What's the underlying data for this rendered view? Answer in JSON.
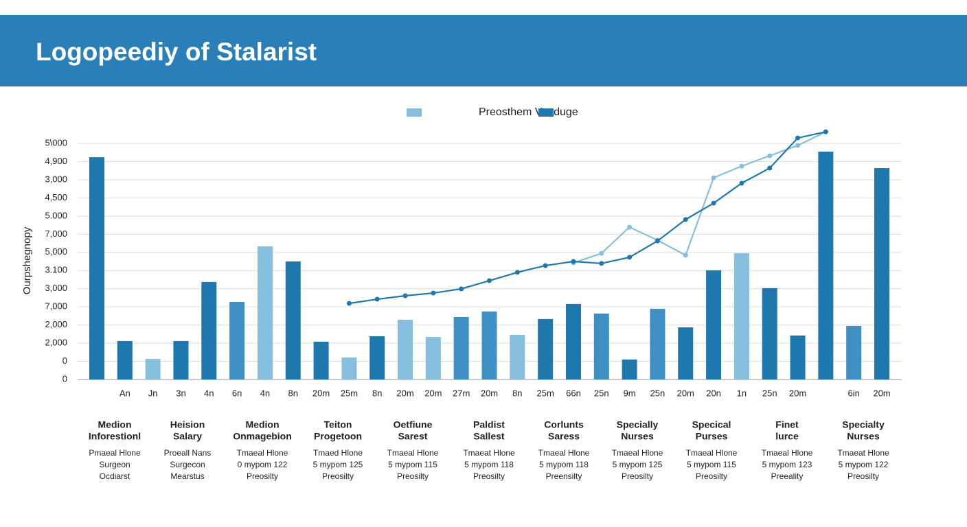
{
  "chart_data": {
    "type": "bar",
    "title": "Logopeediy of Stalarist",
    "legend": "Preosthem Vanduge",
    "legend_colors": [
      "#86bede",
      "#1f78ad"
    ],
    "ylabel": "Ourpshegnopy",
    "ylim": [
      0,
      14
    ],
    "yticks": [
      0,
      {
        "value": 1,
        "label": "0"
      },
      {
        "value": 2,
        "label": "2,000"
      },
      {
        "value": 3,
        "label": "2,000"
      },
      {
        "value": 4,
        "label": "7,000"
      },
      {
        "value": 5,
        "label": "3,000"
      },
      {
        "value": 6,
        "label": "3.100"
      },
      {
        "value": 7,
        "label": "5,000"
      },
      {
        "value": 8,
        "label": "7,000"
      },
      {
        "value": 9,
        "label": "5.000"
      },
      {
        "value": 10,
        "label": "4,500"
      },
      {
        "value": 11,
        "label": "3,000"
      },
      {
        "value": 12,
        "label": "4,900"
      },
      {
        "value": 13,
        "label": "5\\000"
      }
    ],
    "grid": true,
    "categories": [
      null,
      "An",
      "Jn",
      "3n",
      "4n",
      "6n",
      "4n",
      "8n",
      "20m",
      "25m",
      "8n",
      "20m",
      "20m",
      "27m",
      "20m",
      "8n",
      "25m",
      "66n",
      "25n",
      "9m",
      "25n",
      "20m",
      "20n",
      "1n",
      "25n",
      "20m",
      null,
      "6in",
      "20m"
    ],
    "values": [
      12.24,
      2.12,
      1.13,
      2.12,
      5.37,
      4.27,
      7.33,
      6.5,
      2.08,
      1.21,
      2.38,
      3.29,
      2.34,
      3.44,
      3.74,
      2.46,
      3.33,
      4.16,
      3.63,
      1.1,
      3.89,
      2.87,
      6.01,
      6.95,
      5.03,
      2.42,
      12.55,
      2.95,
      11.64
    ],
    "colors": [
      "#1f78ad",
      "#1f78ad",
      "#86bede",
      "#1f78ad",
      "#1f78ad",
      "#3d8fc4",
      "#86bede",
      "#1f78ad",
      "#1f78ad",
      "#86bede",
      "#1f78ad",
      "#86bede",
      "#86bede",
      "#3d8fc4",
      "#3d8fc4",
      "#86bede",
      "#1f78ad",
      "#1f78ad",
      "#3d8fc4",
      "#1f78ad",
      "#3d8fc4",
      "#1f78ad",
      "#1f78ad",
      "#86bede",
      "#1f78ad",
      "#1f78ad",
      "#1f78ad",
      "#3d8fc4",
      "#1f78ad"
    ],
    "lines": [
      {
        "color": "#86bede",
        "values": [
          null,
          null,
          null,
          null,
          null,
          null,
          null,
          null,
          null,
          null,
          null,
          null,
          null,
          null,
          null,
          null,
          null,
          6.42,
          6.95,
          8.39,
          7.67,
          6.84,
          11.11,
          11.75,
          12.32,
          12.89,
          13.64,
          null,
          null
        ]
      },
      {
        "color": "#1f78ad",
        "values": [
          null,
          null,
          null,
          null,
          null,
          null,
          null,
          null,
          null,
          4.19,
          4.42,
          4.61,
          4.76,
          4.99,
          5.44,
          5.9,
          6.27,
          6.5,
          6.39,
          6.73,
          7.63,
          8.81,
          9.71,
          10.81,
          11.64,
          13.3,
          13.64,
          null,
          null
        ]
      }
    ]
  },
  "columns": [
    {
      "title": [
        "Medion",
        "Inforestionl"
      ],
      "lines": [
        "Pmaeal Hlone",
        "Surgeon",
        "Ocdiarst"
      ]
    },
    {
      "title": [
        "Heision",
        "Salary"
      ],
      "lines": [
        "Proeall Nans",
        "Surgecon",
        "Mearstus"
      ]
    },
    {
      "title": [
        "Medion",
        "Onmagebion"
      ],
      "lines": [
        "Tmaeal Hlone",
        "0 mypom 122",
        "Preosilty"
      ]
    },
    {
      "title": [
        "Teiton",
        "Progetoon"
      ],
      "lines": [
        "Tmaed Hlone",
        "5 mypom 125",
        "Preosilty"
      ]
    },
    {
      "title": [
        "Oetfiune",
        "Sarest"
      ],
      "lines": [
        "Tmaeal Hlone",
        "5 mypom 115",
        "Preosilty"
      ]
    },
    {
      "title": [
        "Paldist",
        "Sallest"
      ],
      "lines": [
        "Tmaeat Hlone",
        "5 mypom 118",
        "Preosilty"
      ]
    },
    {
      "title": [
        "Corlunts",
        "Saress"
      ],
      "lines": [
        "Tmaeal Hlone",
        "5 mypom 118",
        "Preensilty"
      ]
    },
    {
      "title": [
        "Specially",
        "Nurses"
      ],
      "lines": [
        "Tmaeal Hlone",
        "5 mypom 125",
        "Preosilty"
      ]
    },
    {
      "title": [
        "Specical",
        "Purses"
      ],
      "lines": [
        "Tmaeal Hlone",
        "5 mypom 115",
        "Preosilty"
      ]
    },
    {
      "title": [
        "Finet",
        "lurce"
      ],
      "lines": [
        "Tmaeal Hlone",
        "5 mypom 123",
        "Preeality"
      ]
    },
    {
      "title": [
        "Specialty",
        "Nurses"
      ],
      "lines": [
        "Tmaeat Hlone",
        "5 mypom 122",
        "Preosilty"
      ]
    }
  ]
}
